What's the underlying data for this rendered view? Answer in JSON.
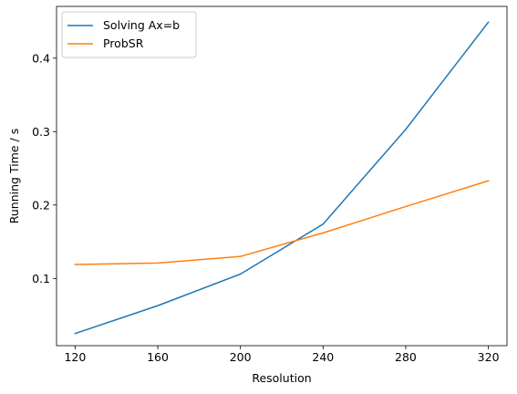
{
  "chart_data": {
    "type": "line",
    "title": "",
    "xlabel": "Resolution",
    "ylabel": "Running Time / s",
    "x": [
      120,
      160,
      200,
      240,
      280,
      320
    ],
    "xlim": [
      111,
      329
    ],
    "ylim": [
      0.0085,
      0.4705
    ],
    "xticks": [
      120,
      160,
      200,
      240,
      280,
      320
    ],
    "yticks": [
      0.1,
      0.2,
      0.3,
      0.4
    ],
    "ytick_labels": [
      "0.1",
      "0.2",
      "0.3",
      "0.4"
    ],
    "grid": false,
    "legend_position": "top-left",
    "series": [
      {
        "name": "Solving Ax=b",
        "color": "#1f77b4",
        "values": [
          0.025,
          0.063,
          0.106,
          0.174,
          0.303,
          0.449
        ]
      },
      {
        "name": "ProbSR",
        "color": "#ff7f0e",
        "values": [
          0.119,
          0.121,
          0.13,
          0.162,
          0.198,
          0.233
        ]
      }
    ]
  }
}
